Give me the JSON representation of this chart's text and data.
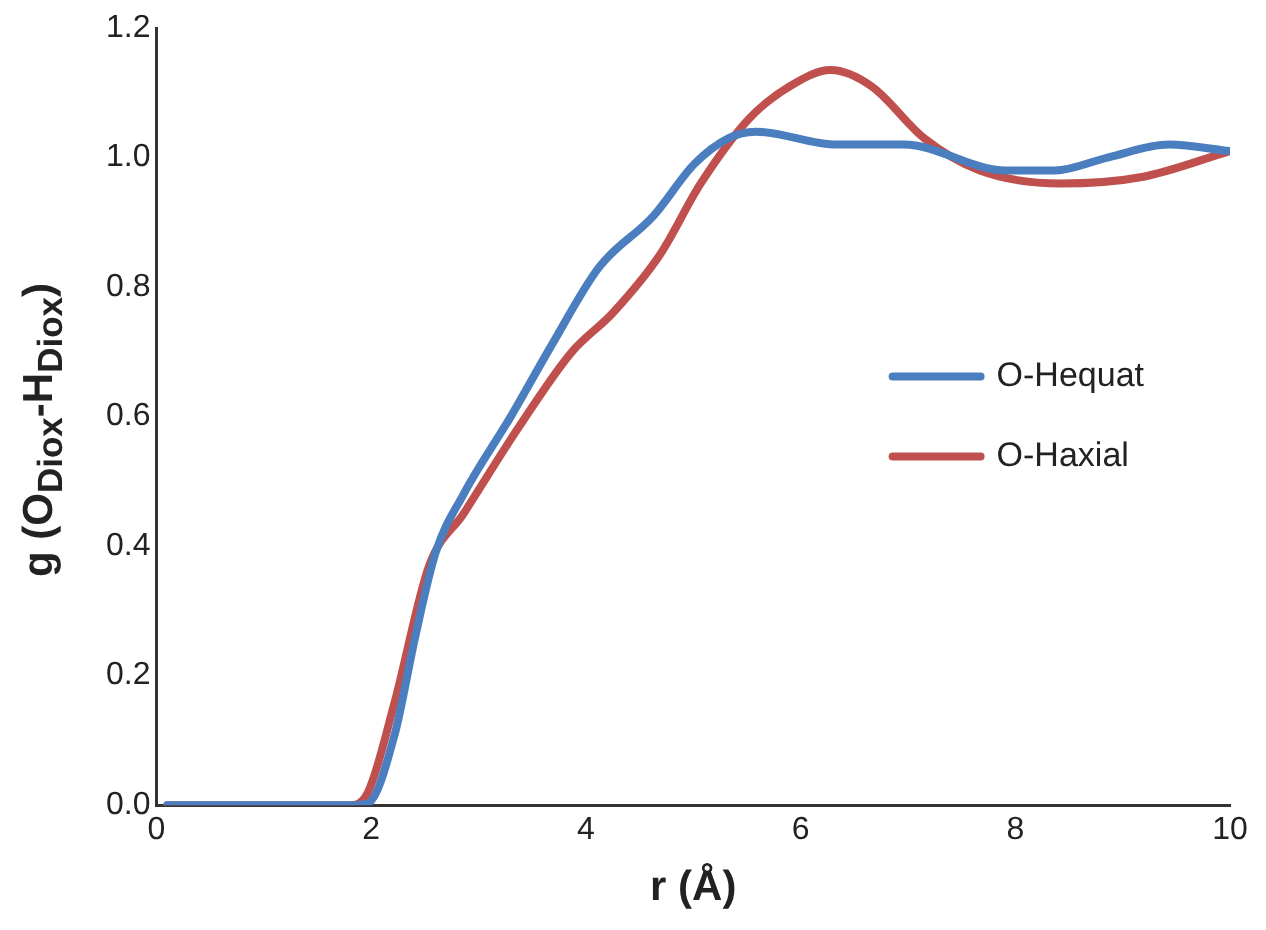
{
  "chart_data": {
    "type": "line",
    "xlabel": "r (Å)",
    "ylabel": "g (O$_{Diox}$-H$_{Diox}$)",
    "xlim": [
      0,
      10
    ],
    "xticks": [
      0,
      2,
      4,
      6,
      8,
      10
    ],
    "ylim": [
      0,
      1.2
    ],
    "yticks": [
      {
        "value": 0,
        "label": "0.0"
      },
      {
        "value": 0.2,
        "label": "0.2"
      },
      {
        "value": 0.4,
        "label": "0.4"
      },
      {
        "value": 0.6,
        "label": "0.6"
      },
      {
        "value": 0.8,
        "label": "0.8"
      },
      {
        "value": 1,
        "label": "1.0"
      },
      {
        "value": 1.2,
        "label": "1.2"
      }
    ],
    "grid": false,
    "legend": "right",
    "marker": "none",
    "line_style": "solid",
    "series": [
      {
        "name": "O-Hequat",
        "color": "#4a7ebf",
        "x": [
          0.1,
          1.8,
          1.97,
          2.22,
          2.41,
          2.6,
          2.86,
          3.3,
          3.68,
          4.12,
          4.63,
          5.01,
          5.33,
          5.58,
          6.34,
          6.96,
          7.91,
          8.37,
          8.86,
          9.43,
          10
        ],
        "values": [
          0,
          0,
          0.003,
          0.11,
          0.26,
          0.39,
          0.48,
          0.6,
          0.71,
          0.83,
          0.91,
          0.99,
          1.03,
          1.04,
          1.02,
          1.02,
          0.98,
          0.98,
          1,
          1.02,
          1.01
        ]
      },
      {
        "name": "O-Haxial",
        "color": "#c0504d",
        "x": [
          0.1,
          1.8,
          1.97,
          2.22,
          2.54,
          2.86,
          3.36,
          3.87,
          4.25,
          4.69,
          5.07,
          5.52,
          5.9,
          6.28,
          6.66,
          7.15,
          7.67,
          8.42,
          9.18,
          10
        ],
        "values": [
          0,
          0,
          0.02,
          0.16,
          0.37,
          0.45,
          0.58,
          0.7,
          0.76,
          0.85,
          0.96,
          1.06,
          1.11,
          1.135,
          1.11,
          1.03,
          0.98,
          0.96,
          0.97,
          1.01
        ]
      }
    ]
  }
}
